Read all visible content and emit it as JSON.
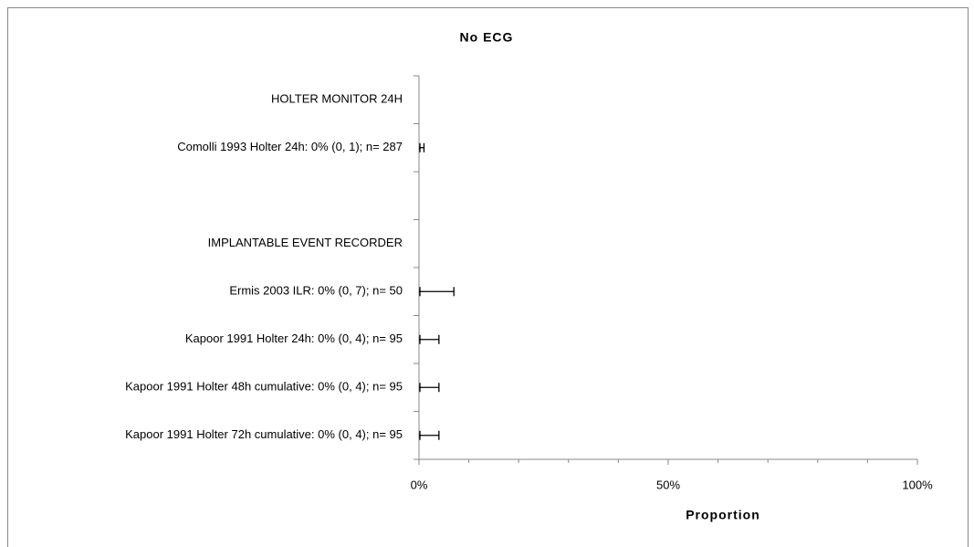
{
  "chart_data": {
    "type": "forest",
    "title": "No ECG",
    "x_label": "Proportion",
    "categories": [
      "HOLTER MONITOR 24H",
      "Comolli 1993 Holter 24h: 0% (0, 1); n= 287",
      null,
      "IMPLANTABLE EVENT RECORDER",
      "Ermis 2003 ILR: 0% (0, 7); n= 50",
      "Kapoor 1991 Holter 24h: 0% (0, 4); n= 95",
      "Kapoor 1991 Holter 48h cumulative: 0% (0, 4); n= 95",
      "Kapoor 1991 Holter 72h cumulative: 0% (0, 4); n= 95"
    ],
    "values": [
      null,
      0,
      null,
      null,
      0,
      0,
      0,
      0
    ],
    "lower": [
      null,
      0,
      null,
      null,
      0,
      0,
      0,
      0
    ],
    "upper": [
      null,
      1,
      null,
      null,
      7,
      4,
      4,
      4
    ],
    "color": "#000000",
    "xlim": [
      0,
      100
    ],
    "xticks": [
      {
        "value": 0,
        "label": "0%"
      },
      {
        "value": 50,
        "label": "50%"
      },
      {
        "value": 100,
        "label": "100%"
      }
    ],
    "xminorticks": [
      10,
      20,
      30,
      40,
      60,
      70,
      80,
      90
    ]
  }
}
